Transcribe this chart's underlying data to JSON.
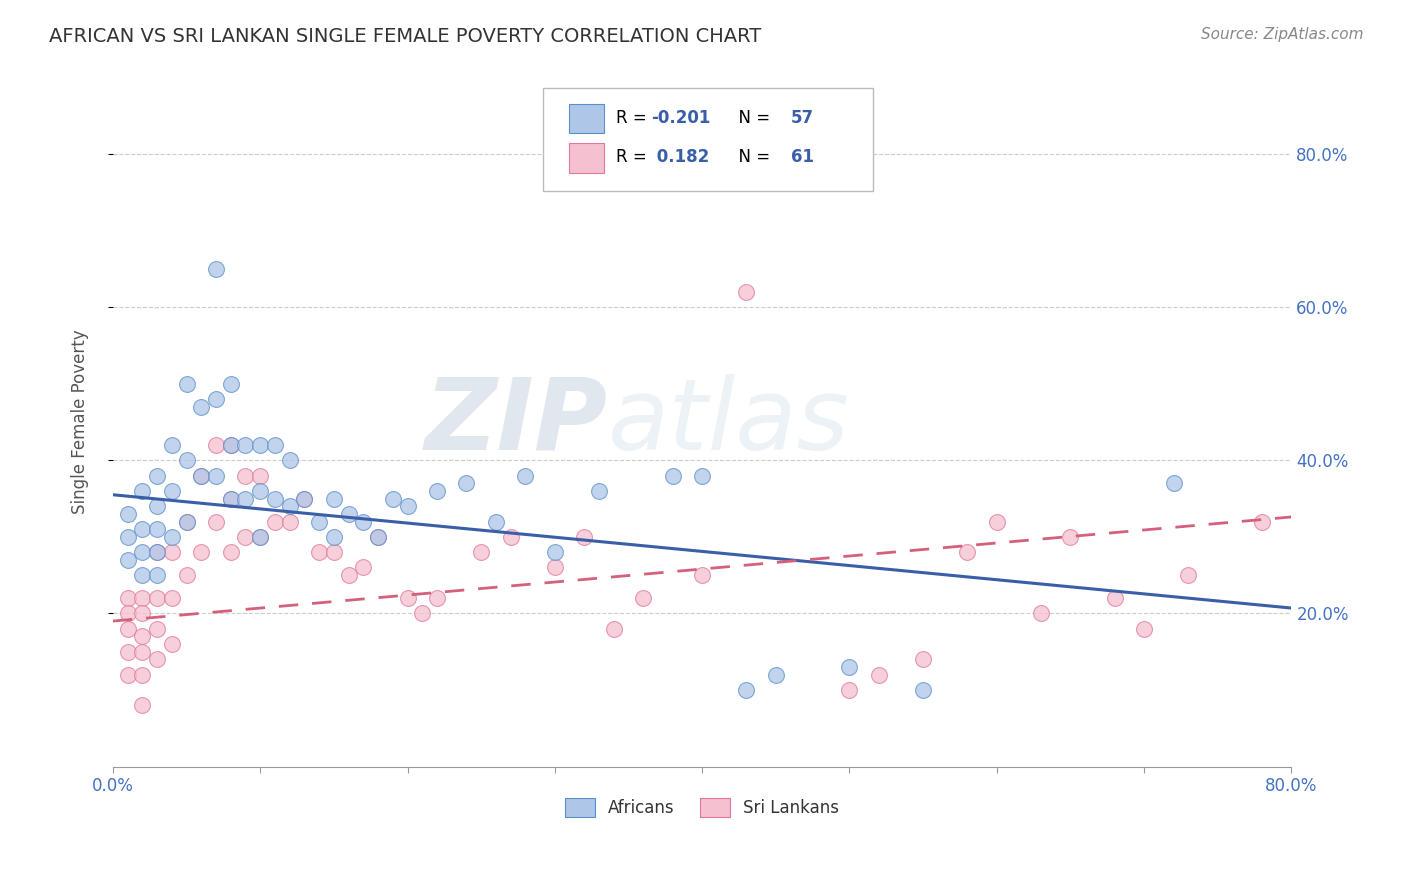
{
  "title": "AFRICAN VS SRI LANKAN SINGLE FEMALE POVERTY CORRELATION CHART",
  "source": "Source: ZipAtlas.com",
  "ylabel": "Single Female Poverty",
  "ytick_labels": [
    "20.0%",
    "40.0%",
    "60.0%",
    "80.0%"
  ],
  "ytick_values": [
    0.2,
    0.4,
    0.6,
    0.8
  ],
  "xlim": [
    0.0,
    0.8
  ],
  "ylim": [
    0.0,
    0.9
  ],
  "african_R": -0.201,
  "african_N": 57,
  "srilankan_R": 0.182,
  "srilankan_N": 61,
  "african_color": "#aec6e8",
  "african_edge_color": "#5b8fc9",
  "srilankan_color": "#f5c0d0",
  "srilankan_edge_color": "#e0789a",
  "african_line_color": "#3a5fa8",
  "srilankan_line_color": "#d4607a",
  "watermark_zip": "ZIP",
  "watermark_atlas": "atlas",
  "africans_x": [
    0.01,
    0.01,
    0.01,
    0.02,
    0.02,
    0.02,
    0.02,
    0.03,
    0.03,
    0.03,
    0.03,
    0.03,
    0.04,
    0.04,
    0.04,
    0.05,
    0.05,
    0.05,
    0.06,
    0.06,
    0.07,
    0.07,
    0.07,
    0.08,
    0.08,
    0.08,
    0.09,
    0.09,
    0.1,
    0.1,
    0.1,
    0.11,
    0.11,
    0.12,
    0.12,
    0.13,
    0.14,
    0.15,
    0.15,
    0.16,
    0.17,
    0.18,
    0.19,
    0.2,
    0.22,
    0.24,
    0.26,
    0.28,
    0.3,
    0.33,
    0.38,
    0.4,
    0.43,
    0.45,
    0.5,
    0.55,
    0.72
  ],
  "africans_y": [
    0.33,
    0.3,
    0.27,
    0.36,
    0.31,
    0.28,
    0.25,
    0.38,
    0.34,
    0.31,
    0.28,
    0.25,
    0.42,
    0.36,
    0.3,
    0.5,
    0.4,
    0.32,
    0.47,
    0.38,
    0.65,
    0.48,
    0.38,
    0.5,
    0.42,
    0.35,
    0.42,
    0.35,
    0.42,
    0.36,
    0.3,
    0.42,
    0.35,
    0.4,
    0.34,
    0.35,
    0.32,
    0.35,
    0.3,
    0.33,
    0.32,
    0.3,
    0.35,
    0.34,
    0.36,
    0.37,
    0.32,
    0.38,
    0.28,
    0.36,
    0.38,
    0.38,
    0.1,
    0.12,
    0.13,
    0.1,
    0.37
  ],
  "srilankans_x": [
    0.01,
    0.01,
    0.01,
    0.01,
    0.01,
    0.02,
    0.02,
    0.02,
    0.02,
    0.02,
    0.02,
    0.03,
    0.03,
    0.03,
    0.03,
    0.04,
    0.04,
    0.04,
    0.05,
    0.05,
    0.06,
    0.06,
    0.07,
    0.07,
    0.08,
    0.08,
    0.08,
    0.09,
    0.09,
    0.1,
    0.1,
    0.11,
    0.12,
    0.13,
    0.14,
    0.15,
    0.16,
    0.17,
    0.18,
    0.2,
    0.21,
    0.22,
    0.25,
    0.27,
    0.3,
    0.32,
    0.34,
    0.36,
    0.4,
    0.43,
    0.5,
    0.52,
    0.55,
    0.58,
    0.6,
    0.63,
    0.65,
    0.68,
    0.7,
    0.73,
    0.78
  ],
  "srilankans_y": [
    0.22,
    0.2,
    0.18,
    0.15,
    0.12,
    0.22,
    0.2,
    0.17,
    0.15,
    0.12,
    0.08,
    0.28,
    0.22,
    0.18,
    0.14,
    0.28,
    0.22,
    0.16,
    0.32,
    0.25,
    0.38,
    0.28,
    0.42,
    0.32,
    0.42,
    0.35,
    0.28,
    0.38,
    0.3,
    0.38,
    0.3,
    0.32,
    0.32,
    0.35,
    0.28,
    0.28,
    0.25,
    0.26,
    0.3,
    0.22,
    0.2,
    0.22,
    0.28,
    0.3,
    0.26,
    0.3,
    0.18,
    0.22,
    0.25,
    0.62,
    0.1,
    0.12,
    0.14,
    0.28,
    0.32,
    0.2,
    0.3,
    0.22,
    0.18,
    0.25,
    0.32
  ]
}
